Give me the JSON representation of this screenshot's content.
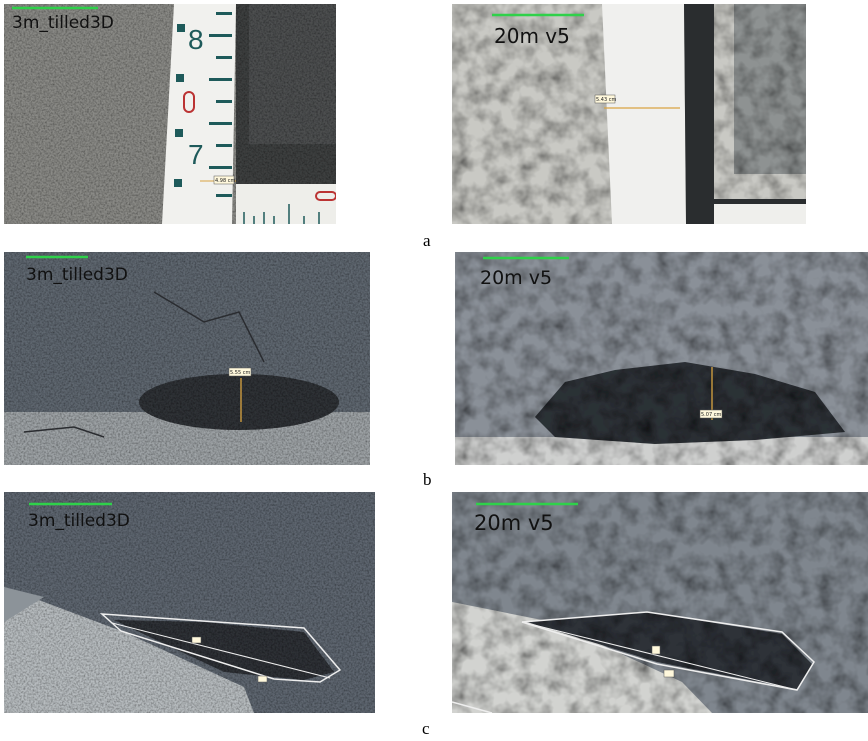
{
  "figure": {
    "rows": [
      {
        "label": "a",
        "panels": [
          {
            "title": "3m_tilled3D",
            "measurement": "4.98 cm"
          },
          {
            "title": "20m v5",
            "measurement": "5.43 cm"
          }
        ]
      },
      {
        "label": "b",
        "panels": [
          {
            "title": "3m_tilled3D",
            "measurement": "5.55 cm"
          },
          {
            "title": "20m v5",
            "measurement": "5.07 cm"
          }
        ]
      },
      {
        "label": "c",
        "panels": [
          {
            "title": "3m_tilled3D"
          },
          {
            "title": "20m v5"
          }
        ]
      }
    ]
  }
}
